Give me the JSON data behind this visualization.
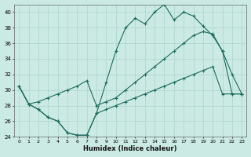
{
  "xlabel": "Humidex (Indice chaleur)",
  "background_color": "#cceae4",
  "grid_color": "#aad4cc",
  "line_color": "#1a6b5e",
  "xlim": [
    -0.5,
    23.5
  ],
  "ylim": [
    24,
    41
  ],
  "yticks": [
    24,
    26,
    28,
    30,
    32,
    34,
    36,
    38,
    40
  ],
  "xticks": [
    0,
    1,
    2,
    3,
    4,
    5,
    6,
    7,
    8,
    9,
    10,
    11,
    12,
    13,
    14,
    15,
    16,
    17,
    18,
    19,
    20,
    21,
    22,
    23
  ],
  "line1_x": [
    0,
    1,
    2,
    3,
    4,
    5,
    6,
    7,
    8,
    9,
    10,
    11,
    12,
    13,
    14,
    15,
    16,
    17,
    18,
    19,
    20,
    21,
    22,
    23
  ],
  "line1_y": [
    30.5,
    28.2,
    27.5,
    26.5,
    26.0,
    24.5,
    24.2,
    24.2,
    27.0,
    31.0,
    35.0,
    38.0,
    39.2,
    38.5,
    40.0,
    41.0,
    39.0,
    40.0,
    39.5,
    38.2,
    37.0,
    35.0,
    32.0,
    29.5
  ],
  "line2_x": [
    0,
    1,
    2,
    3,
    4,
    5,
    6,
    7,
    8,
    9,
    10,
    11,
    12,
    13,
    14,
    15,
    16,
    17,
    18,
    19,
    20,
    21,
    22,
    23
  ],
  "line2_y": [
    30.5,
    28.2,
    28.5,
    29.0,
    29.5,
    30.0,
    30.5,
    31.2,
    28.0,
    28.5,
    29.0,
    30.0,
    31.0,
    32.0,
    33.0,
    34.0,
    35.0,
    36.0,
    37.0,
    37.5,
    37.2,
    35.0,
    29.5,
    29.5
  ],
  "line3_x": [
    0,
    1,
    2,
    3,
    4,
    5,
    6,
    7,
    8,
    9,
    10,
    11,
    12,
    13,
    14,
    15,
    16,
    17,
    18,
    19,
    20,
    21,
    22,
    23
  ],
  "line3_y": [
    30.5,
    28.2,
    27.5,
    26.5,
    26.0,
    24.5,
    24.2,
    24.2,
    27.0,
    27.5,
    28.0,
    28.5,
    29.0,
    29.5,
    30.0,
    30.5,
    31.0,
    31.5,
    32.0,
    32.5,
    33.0,
    29.5,
    29.5,
    29.5
  ]
}
